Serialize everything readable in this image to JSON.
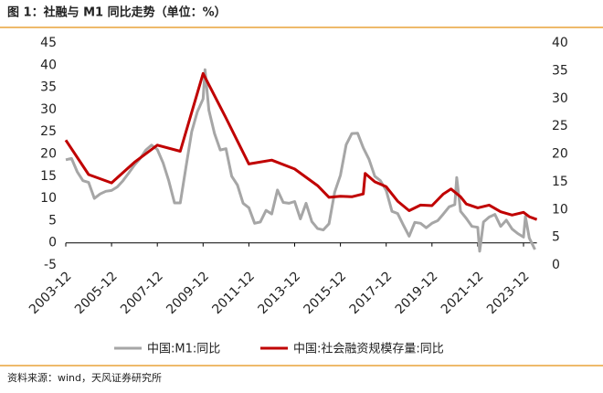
{
  "chart_data": {
    "type": "line",
    "title": "图 1：社融与 M1 同比走势（单位：%）",
    "source": "资料来源：wind，天风证券研究所",
    "xticks": [
      "2003-12",
      "2005-12",
      "2007-12",
      "2009-12",
      "2011-12",
      "2013-12",
      "2015-12",
      "2017-12",
      "2019-12",
      "2021-12",
      "2023-12"
    ],
    "ylim": [
      -5,
      45
    ],
    "yticks": [
      -5,
      0,
      5,
      10,
      15,
      20,
      25,
      30,
      35,
      40,
      45
    ],
    "y2lim": [
      0,
      40
    ],
    "y2ticks": [
      0,
      5,
      10,
      15,
      20,
      25,
      30,
      35,
      40
    ],
    "series": [
      {
        "name": "中国:M1:同比",
        "color": "#a6a6a6",
        "x": [
          "2003-12",
          "2004-03",
          "2004-06",
          "2004-09",
          "2004-12",
          "2005-03",
          "2005-06",
          "2005-09",
          "2005-12",
          "2006-03",
          "2006-06",
          "2006-09",
          "2006-12",
          "2007-03",
          "2007-06",
          "2007-09",
          "2007-12",
          "2008-03",
          "2008-06",
          "2008-09",
          "2008-12",
          "2009-03",
          "2009-06",
          "2009-09",
          "2009-12",
          "2010-01",
          "2010-03",
          "2010-06",
          "2010-09",
          "2010-12",
          "2011-03",
          "2011-06",
          "2011-09",
          "2011-12",
          "2012-03",
          "2012-06",
          "2012-09",
          "2012-12",
          "2013-03",
          "2013-06",
          "2013-09",
          "2013-12",
          "2014-03",
          "2014-06",
          "2014-09",
          "2014-12",
          "2015-03",
          "2015-06",
          "2015-09",
          "2015-12",
          "2016-03",
          "2016-06",
          "2016-09",
          "2016-12",
          "2017-03",
          "2017-06",
          "2017-09",
          "2017-12",
          "2018-03",
          "2018-06",
          "2018-09",
          "2018-12",
          "2019-03",
          "2019-06",
          "2019-09",
          "2019-12",
          "2020-03",
          "2020-06",
          "2020-09",
          "2020-12",
          "2021-01",
          "2021-03",
          "2021-06",
          "2021-09",
          "2021-12",
          "2022-01",
          "2022-03",
          "2022-06",
          "2022-09",
          "2022-12",
          "2023-03",
          "2023-06",
          "2023-09",
          "2023-12",
          "2024-01",
          "2024-03",
          "2024-06"
        ],
        "values": [
          18.7,
          19,
          16,
          14,
          13.6,
          10,
          11,
          11.6,
          11.8,
          12.6,
          14,
          15.7,
          17.5,
          19,
          20.9,
          22,
          21,
          18,
          14,
          9,
          9,
          17,
          25,
          29.5,
          32.4,
          39,
          29.9,
          24.6,
          20.9,
          21.2,
          15,
          13,
          8.9,
          7.9,
          4.4,
          4.7,
          7.3,
          6.5,
          11.9,
          9.1,
          8.9,
          9.3,
          5.4,
          8.9,
          4.8,
          3.2,
          2.9,
          4.3,
          11.4,
          15.2,
          22.1,
          24.6,
          24.7,
          21.4,
          18.8,
          15,
          14,
          11.8,
          7.1,
          6.6,
          4,
          1.5,
          4.6,
          4.4,
          3.4,
          4.4,
          5,
          6.5,
          8.1,
          8.6,
          14.7,
          7.1,
          5.5,
          3.7,
          3.5,
          -1.9,
          4.7,
          5.8,
          6.4,
          3.7,
          5.1,
          3.1,
          2.1,
          1.3,
          5.9,
          1.1,
          -1.5
        ]
      },
      {
        "name": "中国:社会融资规模存量:同比",
        "color": "#c00000",
        "axis": "y2",
        "x": [
          "2003-12",
          "2004-12",
          "2005-12",
          "2006-12",
          "2007-12",
          "2008-12",
          "2009-12",
          "2010-12",
          "2011-12",
          "2012-12",
          "2013-12",
          "2014-12",
          "2015-06",
          "2015-12",
          "2016-06",
          "2016-12",
          "2017-01",
          "2017-06",
          "2017-12",
          "2018-06",
          "2018-12",
          "2019-06",
          "2019-12",
          "2020-06",
          "2020-10",
          "2021-03",
          "2021-06",
          "2021-12",
          "2022-06",
          "2022-12",
          "2023-06",
          "2023-12",
          "2024-03",
          "2024-07"
        ],
        "values": [
          22.5,
          16.3,
          14.8,
          18.5,
          21.6,
          20.5,
          34.5,
          26.5,
          18.2,
          18.9,
          17.3,
          14.3,
          12.2,
          12.4,
          12.3,
          12.8,
          16.5,
          15,
          14.1,
          11.5,
          9.8,
          10.8,
          10.7,
          12.8,
          13.7,
          12.3,
          11,
          10.3,
          10.8,
          9.6,
          9,
          9.5,
          8.7,
          8.2
        ]
      }
    ]
  }
}
